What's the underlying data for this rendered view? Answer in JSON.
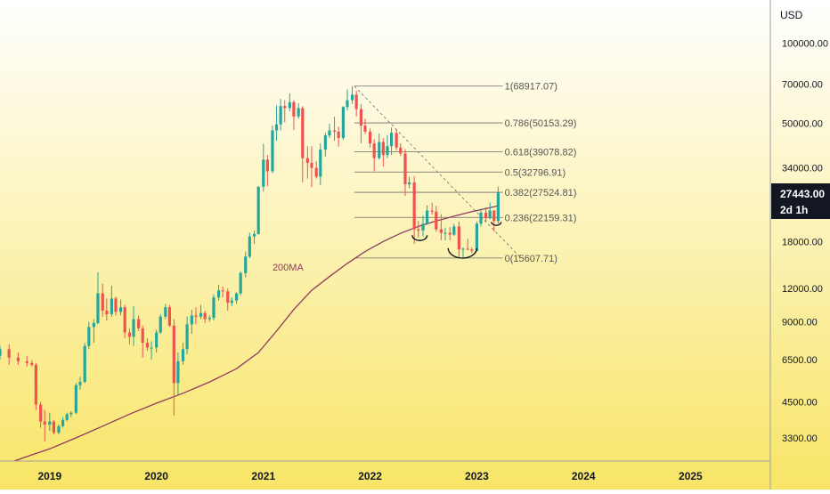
{
  "chart_data": {
    "type": "candlestick",
    "title": "",
    "currency_label": "USD",
    "y_scale": "log",
    "ylim": [
      2700,
      145000
    ],
    "x_range": [
      "2018-07-15",
      "2025-10-01"
    ],
    "price_ticks": [
      3300,
      4500,
      6500,
      9000,
      12000,
      18000,
      34000,
      50000,
      70000,
      100000
    ],
    "price_tick_labels": [
      "3300.00",
      "4500.00",
      "6500.00",
      "9000.00",
      "12000.00",
      "18000.00",
      "34000.00",
      "50000.00",
      "70000.00",
      "100000.00"
    ],
    "year_ticks": [
      "2019",
      "2020",
      "2021",
      "2022",
      "2023",
      "2024",
      "2025"
    ],
    "last_price": {
      "value": 27443.0,
      "label": "27443.00",
      "countdown": "2d 1h"
    },
    "colors": {
      "up": "#26a69a",
      "down": "#ef5350",
      "ma": "#8e3a5e",
      "fib": "#6b6b6b",
      "background_top": "#ffffff",
      "background_bottom": "#f8e567",
      "price_tag": "#131722"
    },
    "candles": [
      [
        "2018-07-15",
        6700,
        7300,
        6500,
        7100
      ],
      [
        "2018-08-15",
        7100,
        7400,
        6200,
        6600
      ],
      [
        "2018-09-15",
        6600,
        6900,
        6200,
        6400
      ],
      [
        "2018-10-15",
        6400,
        6700,
        6100,
        6300
      ],
      [
        "2018-11-01",
        6300,
        6450,
        6100,
        6200
      ],
      [
        "2018-11-15",
        6200,
        6300,
        4200,
        4400
      ],
      [
        "2018-12-01",
        4400,
        4500,
        3600,
        3800
      ],
      [
        "2018-12-15",
        3800,
        4200,
        3200,
        3700
      ],
      [
        "2019-01-01",
        3700,
        4100,
        3500,
        3800
      ],
      [
        "2019-01-15",
        3800,
        3850,
        3400,
        3450
      ],
      [
        "2019-02-01",
        3450,
        3700,
        3400,
        3650
      ],
      [
        "2019-02-15",
        3650,
        3950,
        3600,
        3850
      ],
      [
        "2019-03-01",
        3850,
        4100,
        3800,
        4050
      ],
      [
        "2019-03-15",
        4050,
        4150,
        3950,
        4100
      ],
      [
        "2019-04-01",
        4100,
        5300,
        4050,
        5200
      ],
      [
        "2019-04-15",
        5200,
        5600,
        5000,
        5350
      ],
      [
        "2019-05-01",
        5350,
        7500,
        5300,
        7300
      ],
      [
        "2019-05-15",
        7300,
        9000,
        7100,
        8600
      ],
      [
        "2019-06-01",
        8600,
        9200,
        7500,
        8900
      ],
      [
        "2019-06-15",
        8900,
        13800,
        8800,
        11500
      ],
      [
        "2019-07-01",
        11500,
        12500,
        9400,
        9900
      ],
      [
        "2019-07-15",
        9900,
        11000,
        9100,
        9600
      ],
      [
        "2019-08-01",
        9600,
        12300,
        9400,
        11000
      ],
      [
        "2019-08-15",
        11000,
        11200,
        9500,
        9800
      ],
      [
        "2019-09-01",
        9800,
        10900,
        9500,
        10200
      ],
      [
        "2019-09-15",
        10200,
        10400,
        7800,
        8200
      ],
      [
        "2019-10-01",
        8200,
        8500,
        7400,
        7900
      ],
      [
        "2019-10-15",
        7900,
        10300,
        7300,
        9200
      ],
      [
        "2019-11-01",
        9200,
        9500,
        8300,
        8500
      ],
      [
        "2019-11-15",
        8500,
        8700,
        6600,
        7500
      ],
      [
        "2019-12-01",
        7500,
        7800,
        7000,
        7200
      ],
      [
        "2019-12-15",
        7200,
        7600,
        6500,
        7200
      ],
      [
        "2020-01-01",
        7200,
        8400,
        6900,
        8200
      ],
      [
        "2020-01-15",
        8200,
        9600,
        8100,
        9400
      ],
      [
        "2020-02-01",
        9400,
        10500,
        9200,
        10200
      ],
      [
        "2020-02-15",
        10200,
        10400,
        8600,
        8700
      ],
      [
        "2020-03-01",
        8700,
        9200,
        4000,
        5300
      ],
      [
        "2020-03-15",
        5300,
        6900,
        4800,
        6400
      ],
      [
        "2020-04-01",
        6400,
        7500,
        6200,
        7100
      ],
      [
        "2020-04-15",
        7100,
        9400,
        6800,
        8800
      ],
      [
        "2020-05-01",
        8800,
        10000,
        8100,
        9500
      ],
      [
        "2020-05-15",
        9500,
        10200,
        8800,
        9400
      ],
      [
        "2020-06-01",
        9400,
        10400,
        9200,
        9700
      ],
      [
        "2020-06-15",
        9700,
        9900,
        8900,
        9200
      ],
      [
        "2020-07-01",
        9200,
        9500,
        9000,
        9300
      ],
      [
        "2020-07-15",
        9300,
        11400,
        9100,
        11100
      ],
      [
        "2020-08-01",
        11100,
        12400,
        10800,
        11800
      ],
      [
        "2020-08-15",
        11800,
        12200,
        11100,
        11700
      ],
      [
        "2020-09-01",
        11700,
        12000,
        9900,
        10600
      ],
      [
        "2020-09-15",
        10600,
        11100,
        10300,
        10800
      ],
      [
        "2020-10-01",
        10800,
        11600,
        10500,
        11500
      ],
      [
        "2020-10-15",
        11500,
        13900,
        11300,
        13700
      ],
      [
        "2020-11-01",
        13700,
        16500,
        13200,
        15800
      ],
      [
        "2020-11-15",
        15800,
        19400,
        15600,
        18800
      ],
      [
        "2020-12-01",
        18800,
        19800,
        17600,
        19200
      ],
      [
        "2020-12-15",
        19200,
        29000,
        19100,
        28900
      ],
      [
        "2021-01-01",
        28900,
        41900,
        27700,
        36500
      ],
      [
        "2021-01-15",
        36500,
        38000,
        29000,
        33000
      ],
      [
        "2021-02-01",
        33000,
        49000,
        32500,
        47000
      ],
      [
        "2021-02-15",
        47000,
        58300,
        43000,
        49500
      ],
      [
        "2021-03-01",
        49500,
        61700,
        47000,
        58000
      ],
      [
        "2021-03-15",
        58000,
        61000,
        50400,
        57000
      ],
      [
        "2021-04-01",
        57000,
        64800,
        55500,
        60000
      ],
      [
        "2021-04-15",
        60000,
        61000,
        47100,
        53000
      ],
      [
        "2021-05-01",
        53000,
        59500,
        52000,
        57000
      ],
      [
        "2021-05-15",
        57000,
        58000,
        30000,
        37000
      ],
      [
        "2021-06-01",
        37000,
        41000,
        31000,
        35500
      ],
      [
        "2021-06-15",
        35500,
        41000,
        28800,
        34000
      ],
      [
        "2021-07-01",
        34000,
        36000,
        31000,
        31500
      ],
      [
        "2021-07-15",
        31500,
        42000,
        29300,
        39800
      ],
      [
        "2021-08-01",
        39800,
        46000,
        37500,
        45000
      ],
      [
        "2021-08-15",
        45000,
        49800,
        44000,
        47000
      ],
      [
        "2021-09-01",
        47000,
        52900,
        43000,
        46500
      ],
      [
        "2021-09-15",
        46500,
        48500,
        40800,
        44000
      ],
      [
        "2021-10-01",
        44000,
        58000,
        43300,
        57500
      ],
      [
        "2021-10-15",
        57500,
        67000,
        56000,
        61000
      ],
      [
        "2021-11-01",
        61000,
        68917,
        59000,
        64000
      ],
      [
        "2021-11-15",
        64000,
        66300,
        53000,
        56500
      ],
      [
        "2021-12-01",
        56500,
        59000,
        42000,
        49000
      ],
      [
        "2021-12-15",
        49000,
        52000,
        45500,
        46500
      ],
      [
        "2022-01-01",
        46500,
        47800,
        40500,
        42000
      ],
      [
        "2022-01-15",
        42000,
        43500,
        33000,
        37000
      ],
      [
        "2022-02-01",
        37000,
        45800,
        36500,
        42500
      ],
      [
        "2022-02-15",
        42500,
        44000,
        34400,
        38000
      ],
      [
        "2022-03-01",
        38000,
        45000,
        37000,
        41000
      ],
      [
        "2022-03-15",
        41000,
        48200,
        38000,
        46000
      ],
      [
        "2022-04-01",
        46000,
        47500,
        39500,
        40500
      ],
      [
        "2022-04-15",
        40500,
        42000,
        37600,
        38500
      ],
      [
        "2022-05-01",
        38500,
        40000,
        26700,
        29500
      ],
      [
        "2022-05-15",
        29500,
        31500,
        28500,
        30000
      ],
      [
        "2022-06-01",
        30000,
        31700,
        17600,
        20000
      ],
      [
        "2022-06-15",
        20000,
        21500,
        18600,
        19800
      ],
      [
        "2022-07-01",
        19800,
        22500,
        18800,
        21000
      ],
      [
        "2022-07-15",
        21000,
        24600,
        20800,
        23500
      ],
      [
        "2022-08-01",
        23500,
        25200,
        22700,
        23300
      ],
      [
        "2022-08-15",
        23300,
        24500,
        19600,
        20000
      ],
      [
        "2022-09-01",
        20000,
        22800,
        18200,
        19400
      ],
      [
        "2022-09-15",
        19400,
        20300,
        18200,
        19400
      ],
      [
        "2022-10-01",
        19400,
        20400,
        18200,
        19100
      ],
      [
        "2022-10-15",
        19100,
        21000,
        18900,
        20500
      ],
      [
        "2022-11-01",
        20500,
        21400,
        15600,
        16800
      ],
      [
        "2022-11-15",
        16800,
        17100,
        15700,
        16900
      ],
      [
        "2022-12-01",
        16900,
        18400,
        16700,
        16800
      ],
      [
        "2022-12-15",
        16800,
        17100,
        16300,
        16600
      ],
      [
        "2023-01-01",
        16600,
        21400,
        16500,
        21000
      ],
      [
        "2023-01-15",
        21000,
        23900,
        20500,
        23100
      ],
      [
        "2023-02-01",
        23100,
        24200,
        21400,
        22000
      ],
      [
        "2023-02-15",
        22000,
        25200,
        21800,
        23500
      ],
      [
        "2023-03-01",
        23500,
        23600,
        19600,
        21500
      ],
      [
        "2023-03-15",
        21500,
        28900,
        21000,
        27443
      ]
    ],
    "ma": {
      "label": "200MA",
      "points": [
        [
          "2018-09-01",
          2700
        ],
        [
          "2018-11-01",
          2850
        ],
        [
          "2019-01-01",
          3000
        ],
        [
          "2019-04-01",
          3300
        ],
        [
          "2019-07-01",
          3650
        ],
        [
          "2019-10-01",
          4050
        ],
        [
          "2020-01-01",
          4450
        ],
        [
          "2020-04-01",
          4850
        ],
        [
          "2020-07-01",
          5350
        ],
        [
          "2020-10-01",
          6000
        ],
        [
          "2020-12-15",
          6900
        ],
        [
          "2021-02-15",
          8300
        ],
        [
          "2021-04-15",
          10000
        ],
        [
          "2021-06-15",
          11800
        ],
        [
          "2021-08-15",
          13300
        ],
        [
          "2021-10-15",
          14900
        ],
        [
          "2021-12-15",
          16500
        ],
        [
          "2022-02-15",
          18000
        ],
        [
          "2022-04-15",
          19300
        ],
        [
          "2022-06-15",
          20500
        ],
        [
          "2022-08-15",
          21500
        ],
        [
          "2022-10-15",
          22400
        ],
        [
          "2022-12-15",
          23300
        ],
        [
          "2023-02-15",
          24100
        ],
        [
          "2023-03-20",
          24600
        ]
      ]
    },
    "fib": {
      "start": "2021-11-08",
      "end": "2023-03-31",
      "levels": [
        {
          "label": "1(68917.07)",
          "value": 68917.07
        },
        {
          "label": "0.786(50153.29)",
          "value": 50153.29
        },
        {
          "label": "0.618(39078.82)",
          "value": 39078.82
        },
        {
          "label": "0.5(32796.91)",
          "value": 32796.91
        },
        {
          "label": "0.382(27524.81)",
          "value": 27524.81
        },
        {
          "label": "0.236(22159.31)",
          "value": 22159.31
        },
        {
          "label": "0(15607.71)",
          "value": 15607.71
        }
      ],
      "trendline": [
        [
          "2021-11-08",
          68917
        ],
        [
          "2023-06-01",
          15607
        ]
      ]
    },
    "annotations": [
      {
        "type": "arc",
        "from": "2022-05-25",
        "to": "2022-07-15",
        "value": 19000
      },
      {
        "type": "arc",
        "from": "2022-09-25",
        "to": "2023-01-01",
        "value": 17000
      },
      {
        "type": "arc",
        "from": "2023-02-20",
        "to": "2023-03-25",
        "value": 21300
      }
    ]
  }
}
